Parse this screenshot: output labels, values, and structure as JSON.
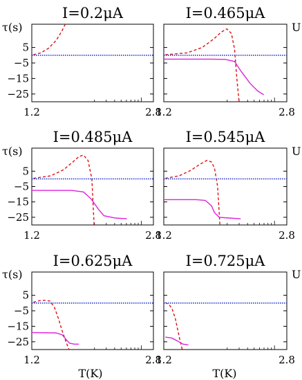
{
  "figure": {
    "y_axis_label": "τ(s)",
    "right_axis_label": "U",
    "x_axis_label": "T(K)"
  },
  "colors": {
    "tau_curve": "#dd1111",
    "zero_line": "#2233cc",
    "u_curve": "#dd22dd",
    "frame": "#000000"
  },
  "chart_data": [
    {
      "type": "line",
      "title": "I=0.2μA",
      "xlim": [
        1.2,
        2.8
      ],
      "ylim": [
        -30,
        20
      ],
      "x_tick_labels": [],
      "y_tick_labels": [
        "5",
        "−5",
        "−15",
        "−25"
      ],
      "y_ticks": [
        5,
        -5,
        -15,
        -25
      ],
      "series": [
        {
          "style": "dashed",
          "color": "#dd1111",
          "x": [
            1.22,
            1.32,
            1.42,
            1.52,
            1.6,
            1.66
          ],
          "y": [
            0.3,
            1.5,
            4.5,
            9.5,
            16,
            22
          ]
        },
        {
          "style": "dotted",
          "color": "#2233cc",
          "x": [
            1.2,
            2.8
          ],
          "y": [
            0,
            0
          ]
        }
      ]
    },
    {
      "type": "line",
      "title": "I=0.465μA",
      "xlim": [
        1.2,
        2.8
      ],
      "ylim": [
        -30,
        20
      ],
      "x_tick_labels": [],
      "y_tick_labels": [],
      "y_ticks": [
        5,
        -5,
        -15,
        -25
      ],
      "series": [
        {
          "style": "dashed",
          "color": "#dd1111",
          "x": [
            1.22,
            1.5,
            1.7,
            1.85,
            1.95,
            2.02,
            2.08,
            2.12,
            2.15,
            2.18
          ],
          "y": [
            0.3,
            1.5,
            5,
            10.5,
            15,
            17,
            14,
            4,
            -15,
            -30
          ]
        },
        {
          "style": "dotted",
          "color": "#2233cc",
          "x": [
            1.2,
            2.8
          ],
          "y": [
            0,
            0
          ]
        },
        {
          "style": "solid",
          "color": "#dd22dd",
          "x": [
            1.2,
            1.8,
            2.0,
            2.12,
            2.2,
            2.32,
            2.42,
            2.5
          ],
          "y": [
            -2.5,
            -2.5,
            -2.7,
            -4,
            -10,
            -18,
            -23,
            -25.5
          ]
        }
      ]
    },
    {
      "type": "line",
      "title": "I=0.485μA",
      "xlim": [
        1.2,
        2.8
      ],
      "ylim": [
        -30,
        20
      ],
      "x_tick_labels": [],
      "y_tick_labels": [
        "5",
        "−5",
        "−15",
        "−25"
      ],
      "y_ticks": [
        5,
        -5,
        -15,
        -25
      ],
      "series": [
        {
          "style": "dashed",
          "color": "#dd1111",
          "x": [
            1.22,
            1.45,
            1.62,
            1.74,
            1.82,
            1.88,
            1.94,
            1.99,
            2.02
          ],
          "y": [
            0.3,
            2,
            6,
            11,
            14.5,
            15.5,
            12,
            0,
            -30
          ]
        },
        {
          "style": "dotted",
          "color": "#2233cc",
          "x": [
            1.2,
            2.8
          ],
          "y": [
            0,
            0
          ]
        },
        {
          "style": "solid",
          "color": "#dd22dd",
          "x": [
            1.2,
            1.72,
            1.88,
            1.98,
            2.08,
            2.15,
            2.3,
            2.45
          ],
          "y": [
            -7.5,
            -7.5,
            -8.5,
            -13,
            -20,
            -24,
            -25.5,
            -26
          ]
        }
      ]
    },
    {
      "type": "line",
      "title": "I=0.545μA",
      "xlim": [
        1.2,
        2.8
      ],
      "ylim": [
        -30,
        20
      ],
      "x_tick_labels": [],
      "y_tick_labels": [],
      "y_ticks": [
        5,
        -5,
        -15,
        -25
      ],
      "series": [
        {
          "style": "dashed",
          "color": "#dd1111",
          "x": [
            1.22,
            1.4,
            1.55,
            1.67,
            1.76,
            1.82,
            1.86,
            1.9,
            1.93
          ],
          "y": [
            0.3,
            2,
            5.5,
            9.5,
            12,
            11,
            7,
            -5,
            -30
          ]
        },
        {
          "style": "dotted",
          "color": "#2233cc",
          "x": [
            1.2,
            2.8
          ],
          "y": [
            0,
            0
          ]
        },
        {
          "style": "solid",
          "color": "#dd22dd",
          "x": [
            1.2,
            1.62,
            1.74,
            1.82,
            1.86,
            1.92,
            2.05,
            2.2
          ],
          "y": [
            -13.5,
            -13.5,
            -14,
            -17.5,
            -22,
            -25,
            -25.5,
            -26
          ]
        }
      ]
    },
    {
      "type": "line",
      "title": "I=0.625μA",
      "xlim": [
        1.2,
        2.8
      ],
      "ylim": [
        -30,
        20
      ],
      "x_tick_labels": [
        "1.2",
        "2.8"
      ],
      "x_ticks": [
        1.2,
        2.8
      ],
      "y_tick_labels": [
        "5",
        "−5",
        "−15",
        "−25"
      ],
      "y_ticks": [
        5,
        -5,
        -15,
        -25
      ],
      "series": [
        {
          "style": "dashed",
          "color": "#dd1111",
          "x": [
            1.22,
            1.3,
            1.38,
            1.44,
            1.5,
            1.55,
            1.6,
            1.65,
            1.69
          ],
          "y": [
            0.5,
            1.5,
            1.8,
            1.2,
            -3,
            -10,
            -18,
            -25,
            -30
          ]
        },
        {
          "style": "dotted",
          "color": "#2233cc",
          "x": [
            1.2,
            2.8
          ],
          "y": [
            0,
            0
          ]
        },
        {
          "style": "solid",
          "color": "#dd22dd",
          "x": [
            1.2,
            1.52,
            1.6,
            1.66,
            1.7,
            1.76,
            1.82
          ],
          "y": [
            -19,
            -19.3,
            -20.5,
            -24,
            -26,
            -26.5,
            -26.5
          ]
        }
      ]
    },
    {
      "type": "line",
      "title": "I=0.725μA",
      "xlim": [
        1.2,
        2.8
      ],
      "ylim": [
        -30,
        20
      ],
      "x_tick_labels": [
        "1.2",
        "2.8"
      ],
      "x_ticks": [
        1.2,
        2.8
      ],
      "y_tick_labels": [],
      "y_ticks": [
        5,
        -5,
        -15,
        -25
      ],
      "series": [
        {
          "style": "dashed",
          "color": "#dd1111",
          "x": [
            1.22,
            1.27,
            1.31,
            1.35,
            1.38,
            1.41,
            1.44
          ],
          "y": [
            0.3,
            -1,
            -4,
            -10,
            -17,
            -24,
            -30
          ]
        },
        {
          "style": "dotted",
          "color": "#2233cc",
          "x": [
            1.2,
            2.8
          ],
          "y": [
            0,
            0
          ]
        },
        {
          "style": "solid",
          "color": "#dd22dd",
          "x": [
            1.22,
            1.3,
            1.38,
            1.45,
            1.52
          ],
          "y": [
            -22,
            -22.5,
            -24.5,
            -26.5,
            -27
          ]
        }
      ]
    }
  ],
  "extra_x_tick_labels": [
    {
      "panel": 0,
      "labels": [
        "1.2",
        "2.8"
      ],
      "x": [
        1.2,
        2.8
      ]
    },
    {
      "panel": 1,
      "labels": [
        "1.2",
        "2.8"
      ],
      "x": [
        1.2,
        2.8
      ]
    },
    {
      "panel": 2,
      "labels": [
        "1.2",
        "2.8"
      ],
      "x": [
        1.2,
        2.8
      ]
    },
    {
      "panel": 3,
      "labels": [
        "1.2",
        "2.8"
      ],
      "x": [
        1.2,
        2.8
      ]
    }
  ]
}
